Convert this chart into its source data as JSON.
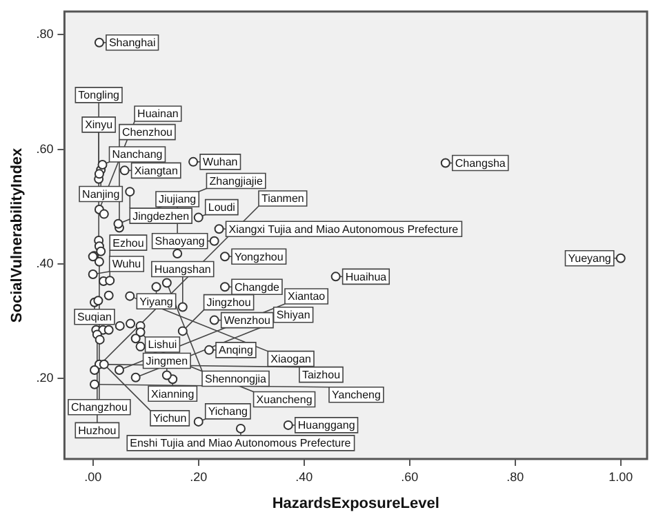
{
  "chart_data": {
    "type": "scatter",
    "xlabel": "HazardsExposureLevel",
    "ylabel": "SocialVulnerabilityIndex",
    "xlim": [
      -0.054,
      1.05
    ],
    "ylim": [
      0.06,
      0.84
    ],
    "xticks": [
      {
        "value": 0,
        "label": ".00"
      },
      {
        "value": 0.2,
        "label": ".20"
      },
      {
        "value": 0.4,
        "label": ".40"
      },
      {
        "value": 0.6,
        "label": ".60"
      },
      {
        "value": 0.8,
        "label": ".80"
      },
      {
        "value": 1,
        "label": "1.00"
      }
    ],
    "yticks": [
      {
        "value": 0.2,
        "label": ".20"
      },
      {
        "value": 0.4,
        "label": ".40"
      },
      {
        "value": 0.6,
        "label": ".60"
      },
      {
        "value": 0.8,
        "label": ".80"
      }
    ],
    "grid": false,
    "legend": false,
    "marker": "circle",
    "series": [
      {
        "color": "#333333",
        "x": [
          0.012,
          0.015,
          0.018,
          0.011,
          0.012,
          0.06,
          0.19,
          0.07,
          0.2,
          0.05,
          0.012,
          0.021,
          0.048,
          0.239,
          0.23,
          0.011,
          0.012,
          0.015,
          0.002,
          0.16,
          0.25,
          0.012,
          0.0,
          0.14,
          0.0,
          0.02,
          0.032,
          0.03,
          0.07,
          0.25,
          0.12,
          0.17,
          0.003,
          0.01,
          0.09,
          0.09,
          0.081,
          0.17,
          0.23,
          0.051,
          0.071,
          0.006,
          0.019,
          0.03,
          0.008,
          0.013,
          0.22,
          0.09,
          0.012,
          0.021,
          0.151,
          0.14,
          0.081,
          0.003,
          0.003,
          0.05,
          0.2,
          0.28,
          0.37,
          0.46,
          1.0,
          0.668
        ],
        "values": [
          0.786,
          0.564,
          0.573,
          0.548,
          0.557,
          0.563,
          0.578,
          0.526,
          0.481,
          0.463,
          0.495,
          0.487,
          0.47,
          0.461,
          0.44,
          0.441,
          0.431,
          0.422,
          0.414,
          0.418,
          0.413,
          0.404,
          0.382,
          0.367,
          0.413,
          0.37,
          0.371,
          0.345,
          0.344,
          0.36,
          0.36,
          0.325,
          0.333,
          0.336,
          0.292,
          0.281,
          0.27,
          0.283,
          0.302,
          0.292,
          0.296,
          0.285,
          0.285,
          0.285,
          0.277,
          0.268,
          0.25,
          0.256,
          0.225,
          0.225,
          0.199,
          0.206,
          0.202,
          0.215,
          0.19,
          0.215,
          0.125,
          0.113,
          0.119,
          0.378,
          0.41,
          0.576
        ]
      }
    ],
    "annotations": [
      {
        "text": "Shanghai",
        "x": 0.012,
        "y": 0.786
      },
      {
        "text": "Changsha",
        "x": 0.668,
        "y": 0.576
      },
      {
        "text": "Yueyang",
        "x": 1.0,
        "y": 0.41
      },
      {
        "text": "Huaihua",
        "x": 0.46,
        "y": 0.378
      },
      {
        "text": "Huanggang",
        "x": 0.37,
        "y": 0.119
      },
      {
        "text": "Enshi Tujia and Miao Autonomous Prefecture",
        "x": 0.28,
        "y": 0.113
      },
      {
        "text": "Yichang",
        "x": 0.2,
        "y": 0.125
      },
      {
        "text": "Xiangxi Tujia and Miao Autonomous Prefecture",
        "x": 0.239,
        "y": 0.461
      },
      {
        "text": "Wuhan",
        "x": 0.19,
        "y": 0.578
      },
      {
        "text": "Loudi",
        "x": 0.2,
        "y": 0.481
      },
      {
        "text": "Shaoyang",
        "x": 0.23,
        "y": 0.44
      },
      {
        "text": "Yongzhou",
        "x": 0.25,
        "y": 0.413
      },
      {
        "text": "Changde",
        "x": 0.25,
        "y": 0.36
      },
      {
        "text": "Wenzhou",
        "x": 0.23,
        "y": 0.302
      },
      {
        "text": "Anqing",
        "x": 0.22,
        "y": 0.25
      },
      {
        "text": "Huangshan",
        "x": 0.17,
        "y": 0.325
      },
      {
        "text": "Jingzhou",
        "x": 0.17,
        "y": 0.283
      },
      {
        "text": "Jiujiang",
        "x": 0.16,
        "y": 0.418
      },
      {
        "text": "Shennongjia",
        "x": 0.14,
        "y": 0.367
      },
      {
        "text": "Xianning",
        "x": 0.151,
        "y": 0.199
      },
      {
        "text": "Jingmen",
        "x": 0.14,
        "y": 0.206
      },
      {
        "text": "Yiyang",
        "x": 0.12,
        "y": 0.36
      },
      {
        "text": "Xiangtan",
        "x": 0.06,
        "y": 0.563
      },
      {
        "text": "Jingdezhen",
        "x": 0.07,
        "y": 0.526
      },
      {
        "text": "Nanjing",
        "x": 0.015,
        "y": 0.564
      },
      {
        "text": "Nanchang",
        "x": 0.018,
        "y": 0.573
      },
      {
        "text": "Xinyu",
        "x": 0.011,
        "y": 0.548
      },
      {
        "text": "Zhangjiajie",
        "x": 0.048,
        "y": 0.47
      },
      {
        "text": "Chenzhou",
        "x": 0.05,
        "y": 0.463
      },
      {
        "text": "Huainan",
        "x": 0.012,
        "y": 0.495
      },
      {
        "text": "Tongling",
        "x": 0.011,
        "y": 0.441
      },
      {
        "text": "Changzhou",
        "x": 0.012,
        "y": 0.404
      },
      {
        "text": "Wuhu",
        "x": 0.0,
        "y": 0.382
      },
      {
        "text": "Ezhou",
        "x": 0.032,
        "y": 0.371
      },
      {
        "text": "Xiaogan",
        "x": 0.07,
        "y": 0.344
      },
      {
        "text": "Suqian",
        "x": 0.003,
        "y": 0.333
      },
      {
        "text": "Lishui",
        "x": 0.09,
        "y": 0.281
      },
      {
        "text": "Xuancheng",
        "x": 0.09,
        "y": 0.256
      },
      {
        "text": "Huzhou",
        "x": 0.008,
        "y": 0.277
      },
      {
        "text": "Yichun",
        "x": 0.021,
        "y": 0.225
      },
      {
        "text": "Taizhou",
        "x": 0.012,
        "y": 0.225
      },
      {
        "text": "Shiyan",
        "x": 0.081,
        "y": 0.202
      },
      {
        "text": "Xiantao",
        "x": 0.05,
        "y": 0.215
      },
      {
        "text": "Tianmen",
        "x": 0.003,
        "y": 0.215
      },
      {
        "text": "Yancheng",
        "x": 0.003,
        "y": 0.19
      }
    ]
  }
}
